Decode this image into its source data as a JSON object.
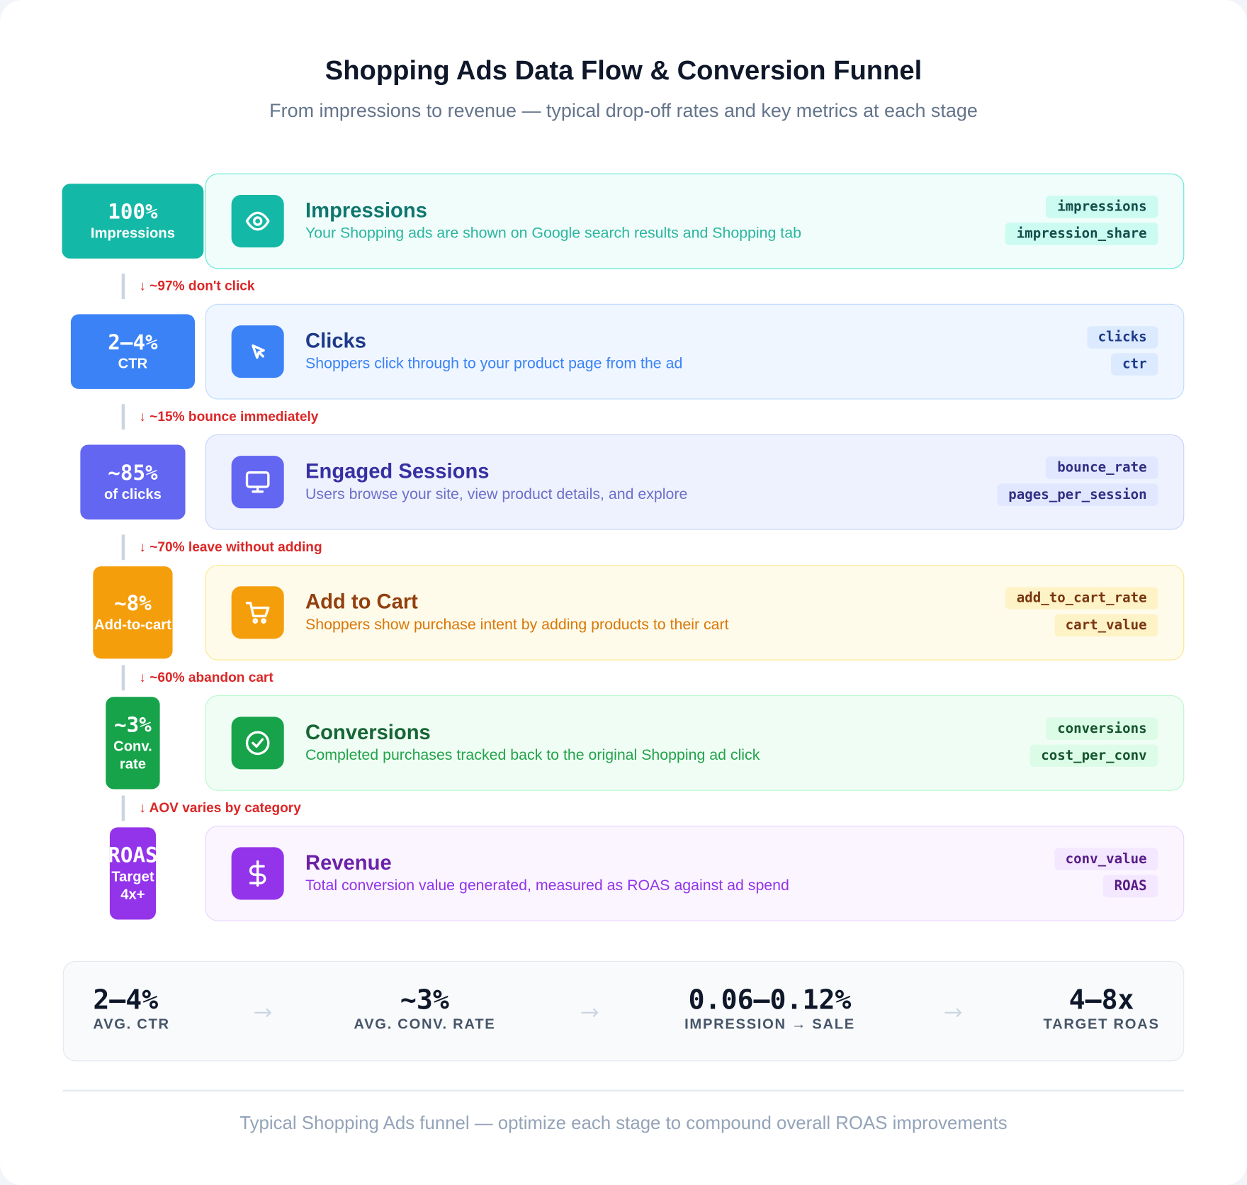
{
  "header": {
    "title": "Shopping Ads Data Flow & Conversion Funnel",
    "subtitle": "From impressions to revenue — typical drop-off rates and key metrics at each stage"
  },
  "stages": [
    {
      "badge_value": "100%",
      "badge_label": "Impressions",
      "title": "Impressions",
      "description": "Your Shopping ads are shown on Google search results and Shopping tab",
      "tags": [
        "impressions",
        "impression_share"
      ],
      "drop": "↓ ~97% don't click"
    },
    {
      "badge_value": "2–4%",
      "badge_label": "CTR",
      "title": "Clicks",
      "description": "Shoppers click through to your product page from the ad",
      "tags": [
        "clicks",
        "ctr"
      ],
      "drop": "↓ ~15% bounce immediately"
    },
    {
      "badge_value": "~85%",
      "badge_label": "of clicks",
      "title": "Engaged Sessions",
      "description": "Users browse your site, view product details, and explore",
      "tags": [
        "bounce_rate",
        "pages_per_session"
      ],
      "drop": "↓ ~70% leave without adding"
    },
    {
      "badge_value": "~8%",
      "badge_label": "Add-to-cart",
      "title": "Add to Cart",
      "description": "Shoppers show purchase intent by adding products to their cart",
      "tags": [
        "add_to_cart_rate",
        "cart_value"
      ],
      "drop": "↓ ~60% abandon cart"
    },
    {
      "badge_value": "~3%",
      "badge_label": "Conv. rate",
      "title": "Conversions",
      "description": "Completed purchases tracked back to the original Shopping ad click",
      "tags": [
        "conversions",
        "cost_per_conv"
      ],
      "drop": "↓ AOV varies by category"
    },
    {
      "badge_value": "ROAS",
      "badge_label": "Target 4x+",
      "title": "Revenue",
      "description": "Total conversion value generated, measured as ROAS against ad spend",
      "tags": [
        "conv_value",
        "ROAS"
      ]
    }
  ],
  "summary": [
    {
      "value": "2–4%",
      "label": "AVG. CTR"
    },
    {
      "value": "~3%",
      "label": "AVG. CONV. RATE"
    },
    {
      "value": "0.06–0.12%",
      "label": "IMPRESSION → SALE"
    },
    {
      "value": "4–8x",
      "label": "TARGET ROAS"
    }
  ],
  "footer": {
    "note": "Typical Shopping Ads funnel — optimize each stage to compound overall ROAS improvements"
  }
}
